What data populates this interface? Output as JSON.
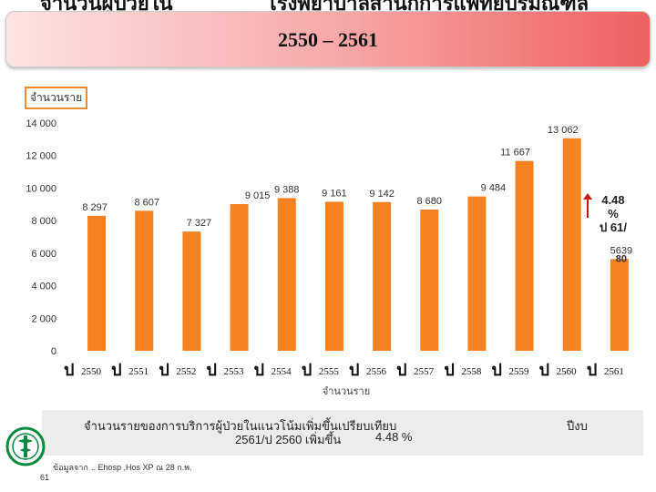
{
  "header": {
    "title_left": "จำนวนผู้ป่วยใน",
    "title_right": "โรงพยาบาลสำนักการแพทย์ปริมณฑล",
    "banner_text": "2550 – 2561"
  },
  "unit_label": "จำนวนราย",
  "change_note": {
    "value": "4.48",
    "percent": "%",
    "tail": "ป 61/"
  },
  "footer": {
    "line1": "จำนวนรายของการบริการผู้ป่วยในแนวโน้มเพิ่มขึ้นเปรียบเทียบ",
    "right_text": "ปีงบ",
    "line2": "2561/ป 2560 เพิ่มขึ้น",
    "pct": "4.48 %",
    "source_label": "ข้อมูลจาก",
    "source_text": ".. Ehosp ,Hos XP ณ 28 ก.พ.",
    "source_year": "61"
  },
  "chart_data": {
    "type": "bar",
    "x_prefix": "ป",
    "categories": [
      "2550",
      "2551",
      "2552",
      "2553",
      "2554",
      "2555",
      "2556",
      "2557",
      "2558",
      "2559",
      "2560",
      "2561"
    ],
    "values": [
      8297,
      8607,
      7327,
      9015,
      9388,
      9161,
      9142,
      8680,
      9484,
      11667,
      13062,
      5639
    ],
    "value_labels": [
      "8 297",
      "8 607",
      "7 327",
      "9 015",
      "9 388",
      "9 161",
      "9 142",
      "8 680",
      "9 484",
      "11 667",
      "13 062",
      "5639"
    ],
    "partial_label": "80",
    "y_ticks": [
      0,
      2000,
      4000,
      6000,
      8000,
      10000,
      12000,
      14000
    ],
    "y_tick_labels": [
      "0",
      "2 000",
      "4 000",
      "6 000",
      "8 000",
      "10 000",
      "12 000",
      "14 000"
    ],
    "ylim": [
      0,
      14000
    ],
    "xlabel": "จำนวนราย",
    "ylabel": "จำนวนราย",
    "bar_color": "#f58220",
    "grid": false,
    "legend": false
  }
}
